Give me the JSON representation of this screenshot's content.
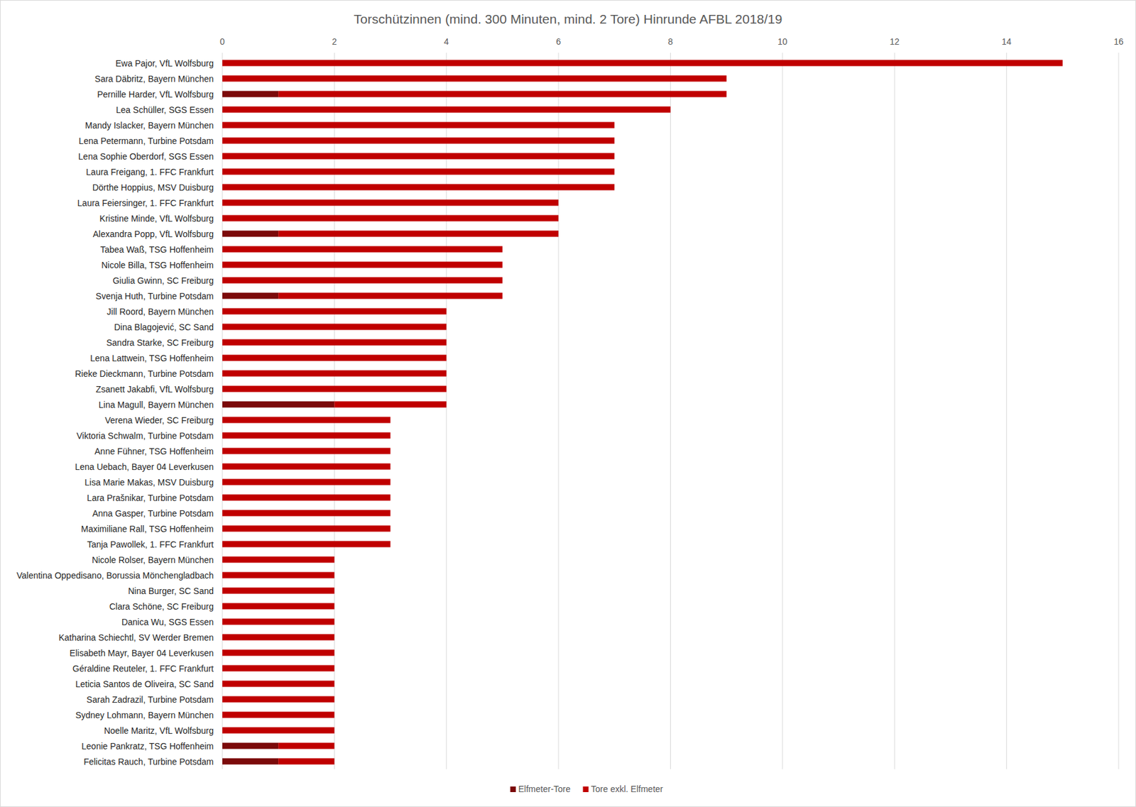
{
  "chart_data": {
    "type": "bar",
    "orientation": "horizontal",
    "stacked": true,
    "grid": true,
    "legend": "bottom",
    "title": "Torschützinnen (mind. 300 Minuten, mind. 2 Tore) Hinrunde AFBL 2018/19",
    "categories": [
      "Ewa Pajor, VfL Wolfsburg",
      "Sara Däbritz, Bayern München",
      "Pernille Harder, VfL Wolfsburg",
      "Lea Schüller, SGS Essen",
      "Mandy Islacker, Bayern München",
      "Lena Petermann, Turbine Potsdam",
      "Lena Sophie Oberdorf, SGS Essen",
      "Laura Freigang, 1. FFC Frankfurt",
      "Dörthe Hoppius, MSV Duisburg",
      "Laura Feiersinger, 1. FFC Frankfurt",
      "Kristine Minde, VfL Wolfsburg",
      "Alexandra Popp, VfL Wolfsburg",
      "Tabea Waß, TSG Hoffenheim",
      "Nicole Billa, TSG Hoffenheim",
      "Giulia Gwinn, SC Freiburg",
      "Svenja Huth, Turbine Potsdam",
      "Jill Roord, Bayern München",
      "Dina Blagojević, SC Sand",
      "Sandra Starke, SC Freiburg",
      "Lena Lattwein, TSG Hoffenheim",
      "Rieke Dieckmann, Turbine Potsdam",
      "Zsanett Jakabfi, VfL Wolfsburg",
      "Lina Magull, Bayern München",
      "Verena Wieder, SC Freiburg",
      "Viktoria Schwalm, Turbine Potsdam",
      "Anne Fühner, TSG Hoffenheim",
      "Lena Uebach, Bayer 04 Leverkusen",
      "Lisa Marie Makas, MSV Duisburg",
      "Lara Prašnikar, Turbine Potsdam",
      "Anna Gasper, Turbine Potsdam",
      "Maximiliane Rall, TSG Hoffenheim",
      "Tanja Pawollek, 1. FFC Frankfurt",
      "Nicole Rolser, Bayern München",
      "Valentina Oppedisano, Borussia Mönchengladbach",
      "Nina Burger, SC Sand",
      "Clara Schöne, SC Freiburg",
      "Danica Wu, SGS Essen",
      "Katharina Schiechtl, SV Werder Bremen",
      "Elisabeth Mayr, Bayer 04 Leverkusen",
      "Géraldine Reuteler, 1. FFC Frankfurt",
      "Leticia Santos de Oliveira, SC Sand",
      "Sarah Zadrazil, Turbine Potsdam",
      "Sydney Lohmann, Bayern München",
      "Noelle Maritz, VfL Wolfsburg",
      "Leonie Pankratz, TSG Hoffenheim",
      "Felicitas Rauch, Turbine Potsdam"
    ],
    "series": [
      {
        "name": "Elfmeter-Tore",
        "color": "#7b0a0a",
        "values": [
          0,
          0,
          1,
          0,
          0,
          0,
          0,
          0,
          0,
          0,
          0,
          1,
          0,
          0,
          0,
          1,
          0,
          0,
          0,
          0,
          0,
          0,
          2,
          0,
          0,
          0,
          0,
          0,
          0,
          0,
          0,
          0,
          0,
          0,
          0,
          0,
          0,
          0,
          0,
          0,
          0,
          0,
          0,
          0,
          1,
          1
        ]
      },
      {
        "name": "Tore exkl. Elfmeter",
        "color": "#c00000",
        "values": [
          15,
          9,
          8,
          8,
          7,
          7,
          7,
          7,
          7,
          6,
          6,
          5,
          5,
          5,
          5,
          4,
          4,
          4,
          4,
          4,
          4,
          4,
          2,
          3,
          3,
          3,
          3,
          3,
          3,
          3,
          3,
          3,
          2,
          2,
          2,
          2,
          2,
          2,
          2,
          2,
          2,
          2,
          2,
          2,
          1,
          1
        ]
      }
    ],
    "xlim": [
      0,
      16
    ],
    "xticks": [
      0,
      2,
      4,
      6,
      8,
      10,
      12,
      14,
      16
    ]
  }
}
